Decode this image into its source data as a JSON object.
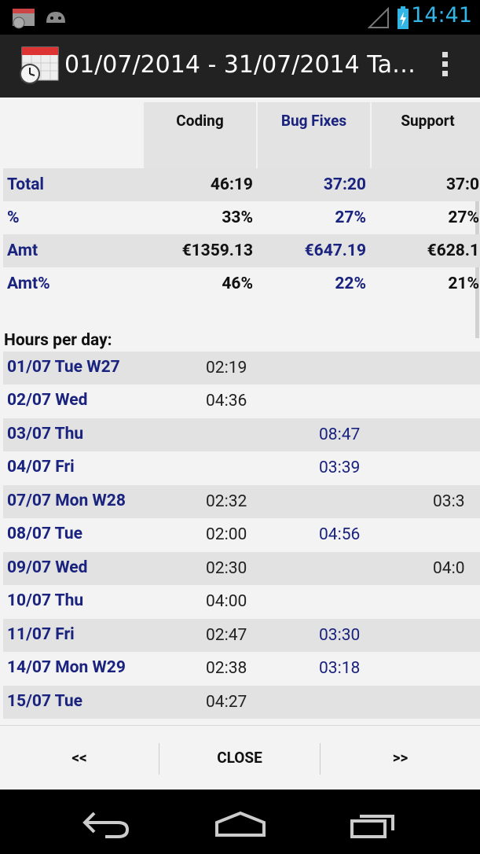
{
  "status": {
    "time": "14:41"
  },
  "actionbar": {
    "title": "01/07/2014 - 31/07/2014 Ta…"
  },
  "columns": [
    "Coding",
    "Bug Fixes",
    "Support"
  ],
  "summary": [
    {
      "label": "Total",
      "values": [
        "46:19",
        "37:20",
        "37:0"
      ]
    },
    {
      "label": "%",
      "values": [
        "33%",
        "27%",
        "27%"
      ]
    },
    {
      "label": "Amt",
      "values": [
        "€1359.13",
        "€647.19",
        "€628.1"
      ]
    },
    {
      "label": "Amt%",
      "values": [
        "46%",
        "22%",
        "21%"
      ]
    }
  ],
  "section_title": "Hours per day:",
  "days": [
    {
      "label": "01/07 Tue W27",
      "values": [
        "02:19",
        "",
        ""
      ]
    },
    {
      "label": "02/07 Wed",
      "values": [
        "04:36",
        "",
        ""
      ]
    },
    {
      "label": "03/07 Thu",
      "values": [
        "",
        "08:47",
        ""
      ]
    },
    {
      "label": "04/07 Fri",
      "values": [
        "",
        "03:39",
        ""
      ]
    },
    {
      "label": "07/07 Mon W28",
      "values": [
        "02:32",
        "",
        "03:3"
      ]
    },
    {
      "label": "08/07 Tue",
      "values": [
        "02:00",
        "04:56",
        ""
      ]
    },
    {
      "label": "09/07 Wed",
      "values": [
        "02:30",
        "",
        "04:0"
      ]
    },
    {
      "label": "10/07 Thu",
      "values": [
        "04:00",
        "",
        ""
      ]
    },
    {
      "label": "11/07 Fri",
      "values": [
        "02:47",
        "03:30",
        ""
      ]
    },
    {
      "label": "14/07 Mon W29",
      "values": [
        "02:38",
        "03:18",
        ""
      ]
    },
    {
      "label": "15/07 Tue",
      "values": [
        "04:27",
        "",
        ""
      ]
    }
  ],
  "buttons": {
    "prev": "<<",
    "close": "CLOSE",
    "next": ">>"
  },
  "colors": {
    "accent": "#33b5e5",
    "label": "#1a237e",
    "row_alt": "#e2e2e2"
  },
  "icons": [
    "calendar-alarm-icon",
    "android-icon",
    "signal-icon",
    "battery-charging-icon",
    "calendar-clock-icon",
    "overflow-menu-icon",
    "back-icon",
    "home-icon",
    "recents-icon"
  ]
}
